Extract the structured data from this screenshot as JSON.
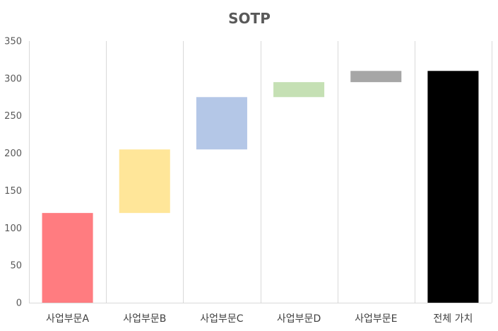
{
  "chart_data": {
    "type": "bar",
    "subtype": "waterfall",
    "title": "SOTP",
    "xlabel": "",
    "ylabel": "",
    "ylim": [
      0,
      350
    ],
    "yticks": [
      0,
      50,
      100,
      150,
      200,
      250,
      300,
      350
    ],
    "grid": "vertical category separators",
    "legend": "none",
    "categories": [
      "사업부문A",
      "사업부문B",
      "사업부문C",
      "사업부문D",
      "사업부문E",
      "전체 가치"
    ],
    "bars": [
      {
        "category": "사업부문A",
        "start": 0,
        "end": 120,
        "value": 120,
        "color": "#FF7C80"
      },
      {
        "category": "사업부문B",
        "start": 120,
        "end": 205,
        "value": 85,
        "color": "#FFE699"
      },
      {
        "category": "사업부문C",
        "start": 205,
        "end": 275,
        "value": 70,
        "color": "#B4C7E7"
      },
      {
        "category": "사업부문D",
        "start": 275,
        "end": 295,
        "value": 20,
        "color": "#C5E0B4"
      },
      {
        "category": "사업부문E",
        "start": 295,
        "end": 310,
        "value": 15,
        "color": "#A6A6A6"
      },
      {
        "category": "전체 가치",
        "start": 0,
        "end": 310,
        "value": 310,
        "color": "#000000"
      }
    ]
  }
}
